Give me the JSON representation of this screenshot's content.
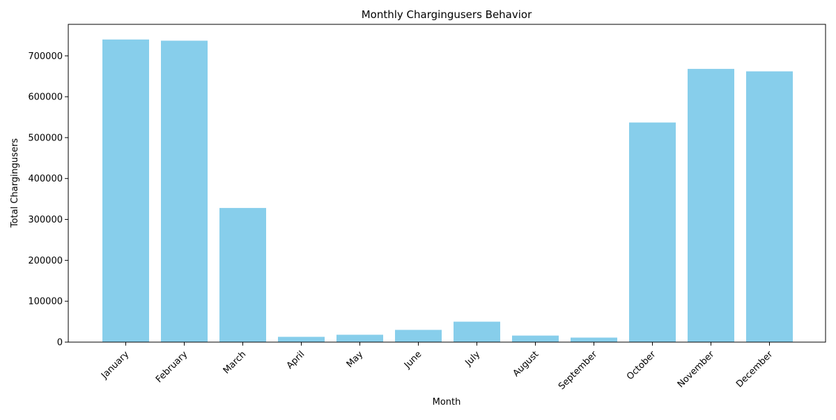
{
  "chart_data": {
    "type": "bar",
    "title": "Monthly Chargingusers Behavior",
    "xlabel": "Month",
    "ylabel": "Total Chargingusers",
    "categories": [
      "January",
      "February",
      "March",
      "April",
      "May",
      "June",
      "July",
      "August",
      "September",
      "October",
      "November",
      "December"
    ],
    "values": [
      740000,
      737000,
      328000,
      13000,
      18000,
      30000,
      50000,
      16000,
      11000,
      537000,
      668000,
      662000
    ],
    "ylim": [
      0,
      777000
    ],
    "yticks": [
      0,
      100000,
      200000,
      300000,
      400000,
      500000,
      600000,
      700000
    ],
    "ytick_labels": [
      "0",
      "100000",
      "200000",
      "300000",
      "400000",
      "500000",
      "600000",
      "700000"
    ],
    "bar_color": "#87ceeb",
    "grid": false,
    "legend": "none"
  }
}
